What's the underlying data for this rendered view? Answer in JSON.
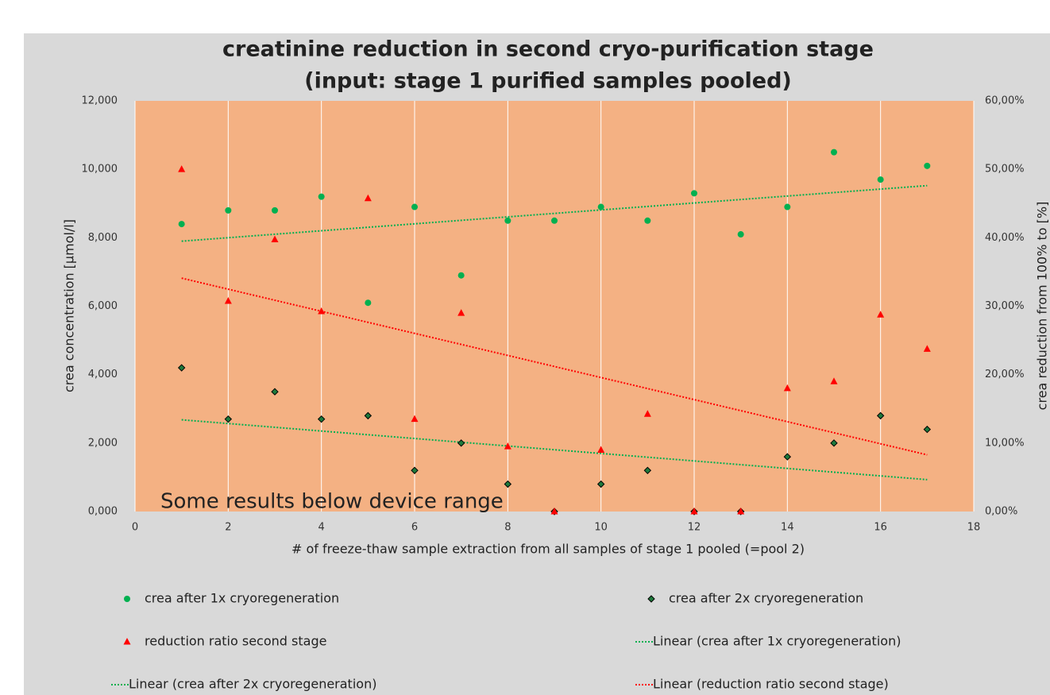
{
  "chart_data": {
    "type": "scatter",
    "title": [
      "creatinine reduction in second cryo-purification stage",
      "(input: stage 1 purified samples pooled)"
    ],
    "x_label": "# of freeze-thaw sample extraction from all samples of stage 1 pooled (=pool  2)",
    "y_label": "crea concentration  [µmol/l]",
    "y2_label": "crea reduction from 100% to  [%]",
    "annotation": "Some results below device range",
    "x": [
      1,
      2,
      3,
      4,
      5,
      6,
      7,
      8,
      9,
      10,
      11,
      12,
      13,
      14,
      15,
      16,
      17
    ],
    "series": [
      {
        "name": "crea after 1x cryoregeneration",
        "color": "#00b050",
        "marker": "circle",
        "values": [
          8.4,
          8.8,
          8.8,
          9.2,
          6.1,
          8.9,
          6.9,
          8.5,
          8.5,
          8.9,
          8.5,
          9.3,
          8.1,
          8.9,
          10.5,
          9.7,
          10.1
        ],
        "trendline": {
          "name": "Linear (crea after 1x cryoregeneration)",
          "color": "#00b050"
        }
      },
      {
        "name": "crea after 2x cryoregeneration",
        "color": "#1e7a3c",
        "marker": "diamond",
        "values": [
          4.2,
          2.7,
          3.5,
          2.7,
          2.8,
          1.2,
          2.0,
          0.8,
          0,
          0.8,
          1.2,
          0,
          0,
          1.6,
          2.0,
          2.8,
          2.4
        ],
        "trendline": {
          "name": "Linear (crea after 2x cryoregeneration)",
          "color": "#00b050"
        }
      },
      {
        "name": "reduction ratio second stage",
        "color": "#ff0000",
        "marker": "triangle",
        "axis": "y2",
        "values": [
          50,
          30.75,
          39.75,
          29.25,
          45.75,
          13.5,
          29,
          9.5,
          0,
          9,
          14.25,
          0,
          0,
          18,
          19,
          28.75,
          23.75
        ],
        "trendline": {
          "name": "Linear (reduction ratio second stage)",
          "color": "#ff0000"
        }
      }
    ],
    "xlim": [
      0,
      18
    ],
    "xticks": [
      0,
      2,
      4,
      6,
      8,
      10,
      12,
      14,
      16,
      18
    ],
    "ylim": [
      0,
      12
    ],
    "yticks": [
      {
        "value": 0,
        "label": "0,000"
      },
      {
        "value": 2,
        "label": "2,000"
      },
      {
        "value": 4,
        "label": "4,000"
      },
      {
        "value": 6,
        "label": "6,000"
      },
      {
        "value": 8,
        "label": "8,000"
      },
      {
        "value": 10,
        "label": "10,000"
      },
      {
        "value": 12,
        "label": "12,000"
      }
    ],
    "y2lim": [
      0,
      60
    ],
    "y2ticks": [
      {
        "value": 0,
        "label": "0,00%"
      },
      {
        "value": 10,
        "label": "10,00%"
      },
      {
        "value": 20,
        "label": "20,00%"
      },
      {
        "value": 30,
        "label": "30,00%"
      },
      {
        "value": 40,
        "label": "40,00%"
      },
      {
        "value": 50,
        "label": "50,00%"
      },
      {
        "value": 60,
        "label": "60,00%"
      }
    ],
    "grid": "x",
    "plot_color": "#f4b183",
    "background": "#d9d9d9"
  }
}
